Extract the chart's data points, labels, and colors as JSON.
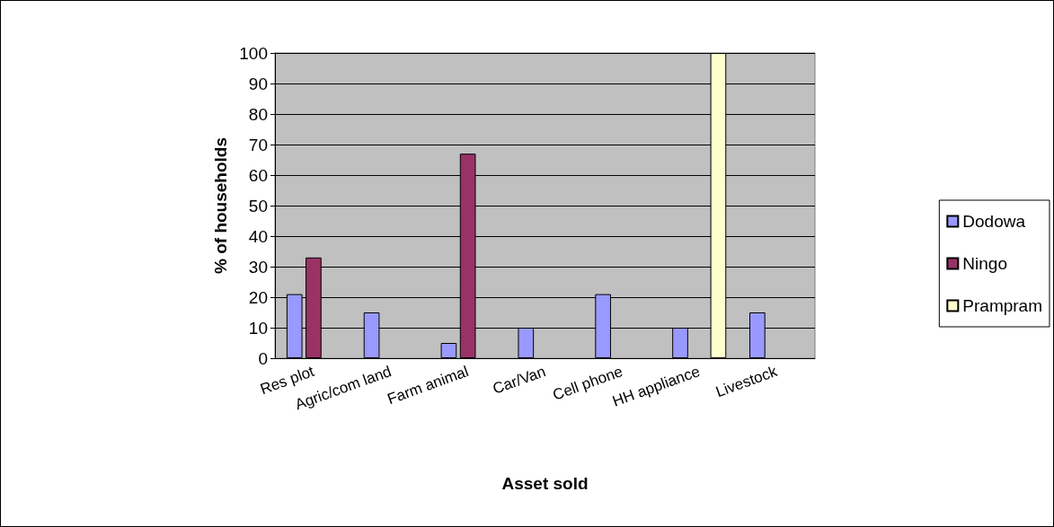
{
  "chart_data": {
    "type": "bar",
    "xlabel": "Asset sold",
    "ylabel": "% of households",
    "categories": [
      "Res plot",
      "Agric/com land",
      "Farm animal",
      "Car/Van",
      "Cell phone",
      "HH appliance",
      "Livestock"
    ],
    "series": [
      {
        "name": "Dodowa",
        "color": "#9999ff",
        "values": [
          21,
          15,
          5,
          10,
          21,
          10,
          15
        ]
      },
      {
        "name": "Ningo",
        "color": "#993366",
        "values": [
          33,
          0,
          67,
          0,
          0,
          0,
          0
        ]
      },
      {
        "name": "Prampram",
        "color": "#ffffcc",
        "values": [
          0,
          0,
          0,
          0,
          0,
          100,
          0
        ]
      }
    ],
    "ylim": [
      0,
      100
    ],
    "yticks": [
      0,
      10,
      20,
      30,
      40,
      50,
      60,
      70,
      80,
      90,
      100
    ],
    "grid": "y",
    "legend": "right"
  }
}
